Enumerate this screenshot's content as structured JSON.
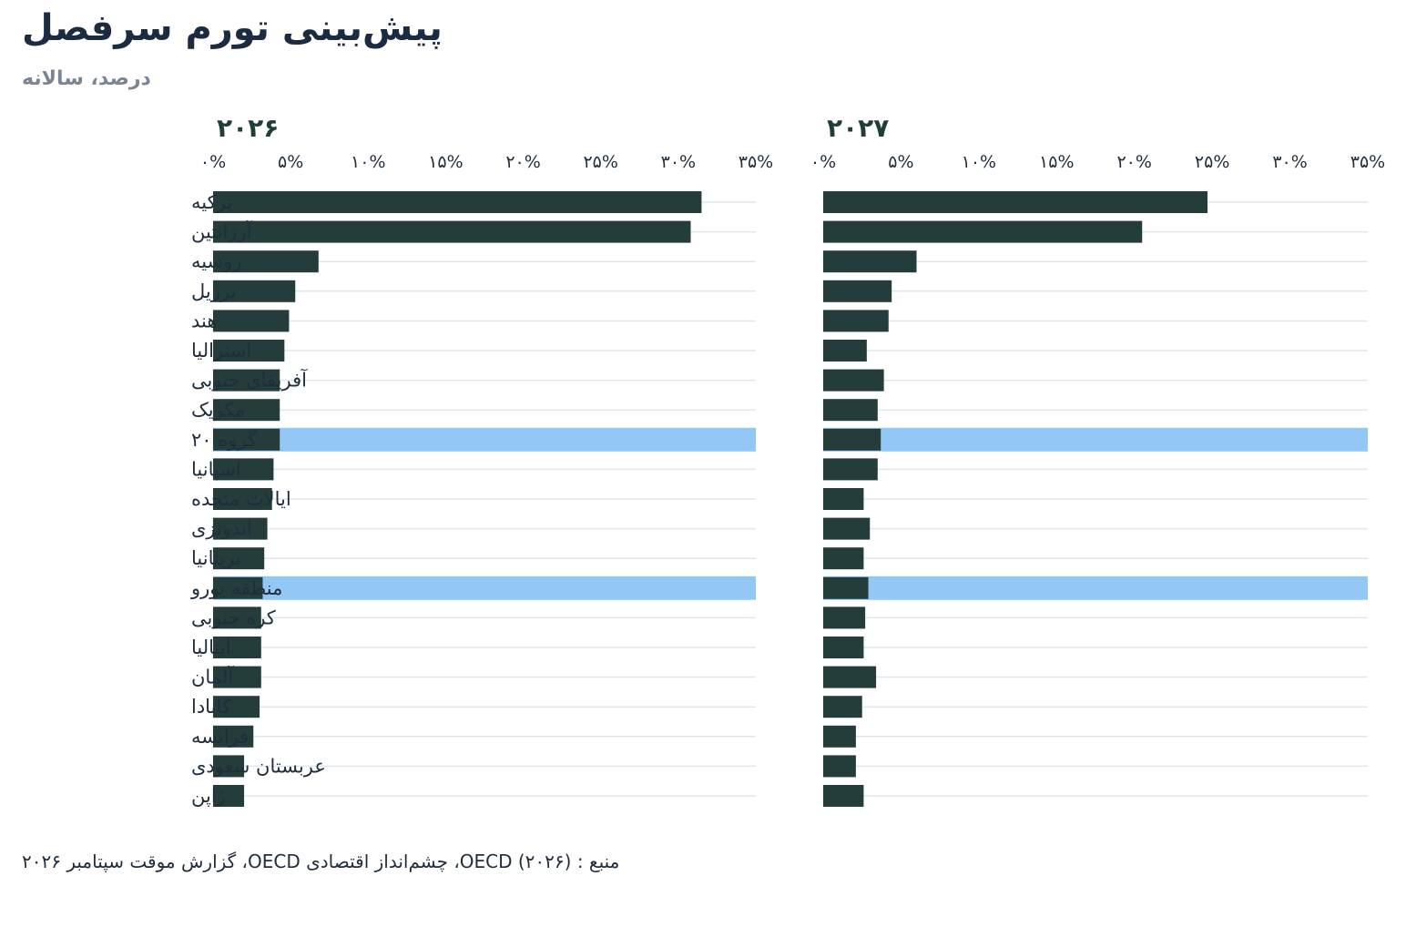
{
  "title": "پیش‌بینی تورم سرفصل",
  "subtitle": "درصد، سالانه",
  "source": "منبع : OECD (۲۰۲۶)، چشم‌انداز اقتصادی OECD، گزارش موقت سپتامبر ۲۰۲۶",
  "colors": {
    "bar": "#243d3a",
    "highlight": "#93c7f5",
    "grid": "#dfe6ee",
    "text": "#1f2d3d",
    "panel_title": "#1f3d3a"
  },
  "chart_data": [
    {
      "type": "bar",
      "orientation": "horizontal",
      "panel_title": "۲۰۲۶",
      "xlim": [
        0,
        35
      ],
      "x_ticks": [
        "۰%",
        "۵%",
        "۱۰%",
        "۱۵%",
        "۲۰%",
        "۲۵%",
        "۳۰%",
        "۳۵%"
      ],
      "categories": [
        "ترکیه",
        "آرژانتین",
        "روسیه",
        "برزیل",
        "هند",
        "استرالیا",
        "آفریقای جنوبی",
        "مکزیک",
        "گروه ۲۰",
        "اسپانیا",
        "ایالات متحده",
        "اندونزی",
        "بریتانیا",
        "منطقه یورو",
        "کره جنوبی",
        "ایتالیا",
        "آلمان",
        "کانادا",
        "فرانسه",
        "عربستان سعودی",
        "ژاپن"
      ],
      "values": [
        31.5,
        30.8,
        6.8,
        5.3,
        4.9,
        4.6,
        4.3,
        4.3,
        4.3,
        3.9,
        3.8,
        3.5,
        3.3,
        3.2,
        3.1,
        3.1,
        3.1,
        3.0,
        2.6,
        2.0,
        2.0
      ],
      "highlighted": [
        "گروه ۲۰",
        "منطقه یورو"
      ],
      "grid": true
    },
    {
      "type": "bar",
      "orientation": "horizontal",
      "panel_title": "۲۰۲۷",
      "xlim": [
        0,
        35
      ],
      "x_ticks": [
        "۰%",
        "۵%",
        "۱۰%",
        "۱۵%",
        "۲۰%",
        "۲۵%",
        "۳۰%",
        "۳۵%"
      ],
      "categories": [
        "ترکیه",
        "آرژانتین",
        "روسیه",
        "برزیل",
        "هند",
        "استرالیا",
        "آفریقای جنوبی",
        "مکزیک",
        "گروه ۲۰",
        "اسپانیا",
        "ایالات متحده",
        "اندونزی",
        "بریتانیا",
        "منطقه یورو",
        "کره جنوبی",
        "ایتالیا",
        "آلمان",
        "کانادا",
        "فرانسه",
        "عربستان سعودی",
        "ژاپن"
      ],
      "values": [
        24.7,
        20.5,
        6.0,
        4.4,
        4.2,
        2.8,
        3.9,
        3.5,
        3.7,
        3.5,
        2.6,
        3.0,
        2.6,
        2.9,
        2.7,
        2.6,
        3.4,
        2.5,
        2.1,
        2.1,
        2.6
      ],
      "highlighted": [
        "گروه ۲۰",
        "منطقه یورو"
      ],
      "grid": true
    }
  ]
}
